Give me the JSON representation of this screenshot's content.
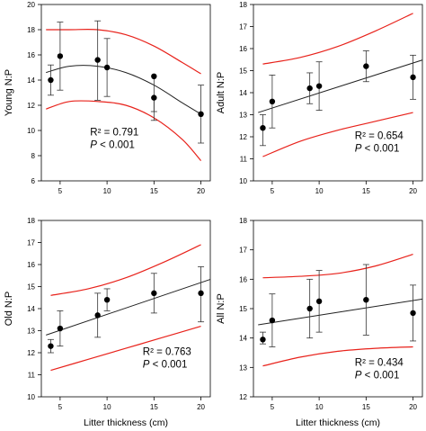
{
  "chart_data": [
    {
      "type": "scatter",
      "id": "young",
      "ylabel": "Young N:P",
      "xlim": [
        3,
        21
      ],
      "ylim": [
        6,
        20
      ],
      "xticks": [
        5,
        10,
        15,
        20
      ],
      "yticks": [
        6,
        8,
        10,
        12,
        14,
        16,
        18,
        20
      ],
      "points": [
        {
          "x": 4,
          "y": 14.0,
          "lo": 12.8,
          "hi": 15.2
        },
        {
          "x": 5,
          "y": 15.9,
          "lo": 13.2,
          "hi": 18.6
        },
        {
          "x": 9,
          "y": 15.6,
          "lo": 12.4,
          "hi": 18.7
        },
        {
          "x": 10,
          "y": 15.0,
          "lo": 12.7,
          "hi": 17.3
        },
        {
          "x": 15,
          "y": 14.3,
          "lo": 11.5,
          "hi": 14.3
        },
        {
          "x": 15,
          "y": 12.6,
          "lo": 10.8,
          "hi": 12.6
        },
        {
          "x": 20,
          "y": 11.3,
          "lo": 9.0,
          "hi": 13.6
        }
      ],
      "fit": {
        "x": [
          3.5,
          6,
          9,
          12,
          15,
          18,
          20
        ],
        "y": [
          14.6,
          15.1,
          15.1,
          14.6,
          13.6,
          12.2,
          11.3
        ]
      },
      "ci_upper": {
        "x": [
          3.5,
          6,
          9,
          12,
          15,
          18,
          20
        ],
        "y": [
          18.0,
          18.0,
          18.0,
          17.6,
          16.7,
          15.4,
          14.5
        ]
      },
      "ci_lower": {
        "x": [
          3.5,
          6,
          9,
          12,
          15,
          18,
          20
        ],
        "y": [
          11.7,
          12.3,
          12.3,
          12.0,
          11.0,
          9.3,
          7.6
        ]
      },
      "r2_text": "R² = 0.791",
      "p_label": "P",
      "p_value": " < 0.001",
      "stats_anchor": {
        "x": 8.2,
        "y": 9.6
      }
    },
    {
      "type": "scatter",
      "id": "adult",
      "ylabel": "Adult N:P",
      "xlim": [
        3,
        21
      ],
      "ylim": [
        10,
        18
      ],
      "xticks": [
        5,
        10,
        15,
        20
      ],
      "yticks": [
        10,
        11,
        12,
        13,
        14,
        15,
        16,
        17,
        18
      ],
      "points": [
        {
          "x": 4,
          "y": 12.4,
          "lo": 11.6,
          "hi": 13.0
        },
        {
          "x": 5,
          "y": 13.6,
          "lo": 12.4,
          "hi": 14.8
        },
        {
          "x": 9,
          "y": 14.2,
          "lo": 13.5,
          "hi": 14.9
        },
        {
          "x": 10,
          "y": 14.3,
          "lo": 13.2,
          "hi": 15.4
        },
        {
          "x": 15,
          "y": 15.2,
          "lo": 14.5,
          "hi": 15.9
        },
        {
          "x": 20,
          "y": 14.7,
          "lo": 13.7,
          "hi": 15.7
        }
      ],
      "fit": {
        "x": [
          3.5,
          21.5
        ],
        "y": [
          13.1,
          15.55
        ]
      },
      "ci_upper": {
        "x": [
          4,
          8,
          12,
          16,
          20
        ],
        "y": [
          15.3,
          15.6,
          16.1,
          16.8,
          17.6
        ]
      },
      "ci_lower": {
        "x": [
          4,
          8,
          12,
          16,
          20
        ],
        "y": [
          11.1,
          11.8,
          12.3,
          12.7,
          13.1
        ]
      },
      "r2_text": "R² = 0.654",
      "p_label": "P",
      "p_value": " < 0.001",
      "stats_anchor": {
        "x": 13.8,
        "y": 11.9
      }
    },
    {
      "type": "scatter",
      "id": "old",
      "ylabel": "Old N:P",
      "xlim": [
        3,
        21
      ],
      "ylim": [
        10,
        18
      ],
      "xticks": [
        5,
        10,
        15,
        20
      ],
      "yticks": [
        10,
        11,
        12,
        13,
        14,
        15,
        16,
        17,
        18
      ],
      "points": [
        {
          "x": 4,
          "y": 12.3,
          "lo": 12.0,
          "hi": 12.6
        },
        {
          "x": 5,
          "y": 13.1,
          "lo": 12.3,
          "hi": 13.9
        },
        {
          "x": 9,
          "y": 13.7,
          "lo": 12.7,
          "hi": 14.7
        },
        {
          "x": 10,
          "y": 14.4,
          "lo": 13.9,
          "hi": 14.9
        },
        {
          "x": 15,
          "y": 14.7,
          "lo": 13.8,
          "hi": 15.6
        },
        {
          "x": 20,
          "y": 14.7,
          "lo": 13.4,
          "hi": 15.9
        }
      ],
      "fit": {
        "x": [
          3.5,
          21.5
        ],
        "y": [
          12.8,
          15.4
        ]
      },
      "ci_upper": {
        "x": [
          4,
          8,
          12,
          16,
          20
        ],
        "y": [
          14.6,
          14.9,
          15.4,
          16.1,
          16.9
        ]
      },
      "ci_lower": {
        "x": [
          4,
          8,
          12,
          16,
          20
        ],
        "y": [
          11.2,
          11.7,
          12.2,
          12.7,
          13.2
        ]
      },
      "r2_text": "R² = 0.763",
      "p_label": "P",
      "p_value": " < 0.001",
      "stats_anchor": {
        "x": 13.8,
        "y": 11.9
      }
    },
    {
      "type": "scatter",
      "id": "all",
      "ylabel": "All N:P",
      "xlim": [
        3,
        21
      ],
      "ylim": [
        12,
        18
      ],
      "xticks": [
        5,
        10,
        15,
        20
      ],
      "yticks": [
        12,
        13,
        14,
        15,
        16,
        17,
        18
      ],
      "points": [
        {
          "x": 4,
          "y": 13.95,
          "lo": 13.8,
          "hi": 14.2
        },
        {
          "x": 5,
          "y": 14.6,
          "lo": 13.7,
          "hi": 15.5
        },
        {
          "x": 9,
          "y": 15.0,
          "lo": 14.0,
          "hi": 16.0
        },
        {
          "x": 10,
          "y": 15.25,
          "lo": 14.2,
          "hi": 16.3
        },
        {
          "x": 15,
          "y": 15.3,
          "lo": 14.1,
          "hi": 16.5
        },
        {
          "x": 20,
          "y": 14.85,
          "lo": 13.9,
          "hi": 15.8
        }
      ],
      "fit": {
        "x": [
          3.5,
          21.5
        ],
        "y": [
          14.45,
          15.35
        ]
      },
      "ci_upper": {
        "x": [
          4,
          8,
          12,
          16,
          20
        ],
        "y": [
          16.05,
          16.1,
          16.2,
          16.45,
          16.85
        ]
      },
      "ci_lower": {
        "x": [
          4,
          8,
          12,
          16,
          20
        ],
        "y": [
          13.05,
          13.35,
          13.55,
          13.65,
          13.7
        ]
      },
      "r2_text": "R² = 0.434",
      "p_label": "P",
      "p_value": " < 0.001",
      "stats_anchor": {
        "x": 13.8,
        "y": 13.05
      }
    }
  ],
  "xlabel": "Litter thickness (cm)",
  "colors": {
    "fit": "#222222",
    "ci": "#e8221b",
    "points": "#000000",
    "frame": "#000000"
  }
}
